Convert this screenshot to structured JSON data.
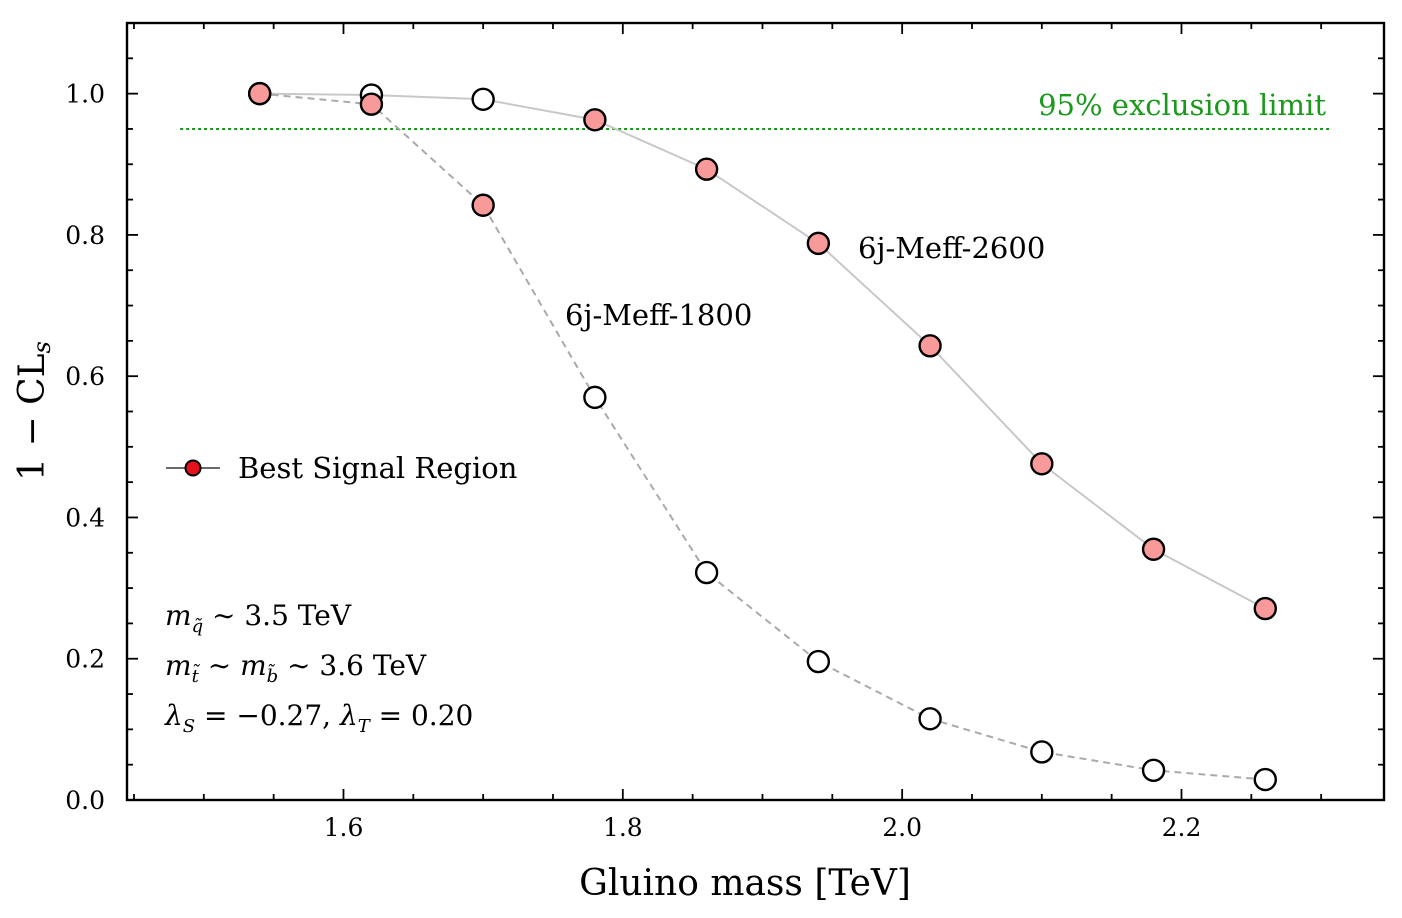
{
  "chart_data": {
    "type": "line",
    "xlabel": "Gluino mass [TeV]",
    "ylabel_main": "1 − CL",
    "ylabel_sub": "s",
    "xlim": [
      1.445,
      2.345
    ],
    "ylim": [
      0.0,
      1.1
    ],
    "x_ticks": [
      1.6,
      1.8,
      2.0,
      2.2
    ],
    "x_tick_labels": [
      "1.6",
      "1.8",
      "2.0",
      "2.2"
    ],
    "x_minor_step": 0.05,
    "y_ticks": [
      0.0,
      0.2,
      0.4,
      0.6,
      0.8,
      1.0
    ],
    "y_tick_labels": [
      "0.0",
      "0.2",
      "0.4",
      "0.6",
      "0.8",
      "1.0"
    ],
    "y_minor_step": 0.05,
    "exclusion_limit": {
      "value": 0.95,
      "x_range": [
        1.483,
        2.307
      ],
      "label": "95% exclusion limit",
      "color": "#1a9a1a"
    },
    "series": [
      {
        "name": "6j-Meff-2600",
        "label": "6j-Meff-2600",
        "line_style": "solid",
        "line_color": "#c8c8c8",
        "x": [
          1.54,
          1.62,
          1.7,
          1.78,
          1.86,
          1.94,
          2.02,
          2.1,
          2.18,
          2.26
        ],
        "y": [
          1.0,
          0.998,
          0.992,
          0.963,
          0.893,
          0.788,
          0.643,
          0.476,
          0.355,
          0.271
        ],
        "best": [
          true,
          false,
          false,
          true,
          true,
          true,
          true,
          true,
          true,
          true
        ]
      },
      {
        "name": "6j-Meff-1800",
        "label": "6j-Meff-1800",
        "line_style": "dashed",
        "line_color": "#aaaaaa",
        "x": [
          1.54,
          1.62,
          1.7,
          1.78,
          1.86,
          1.94,
          2.02,
          2.1,
          2.18,
          2.26
        ],
        "y": [
          1.0,
          0.985,
          0.842,
          0.57,
          0.322,
          0.196,
          0.115,
          0.068,
          0.042,
          0.029
        ],
        "best": [
          true,
          true,
          true,
          false,
          false,
          false,
          false,
          false,
          false,
          false
        ]
      }
    ],
    "legend": {
      "entries": [
        "Best Signal Region"
      ],
      "placement": "center-left"
    },
    "colors": {
      "best_fill": "#f99a9a",
      "legend_marker": "#e8101c",
      "open_fill": "#ffffff",
      "marker_edge": "#000000"
    },
    "annotations": {
      "label_2600": "6j-Meff-2600",
      "label_1800": "6j-Meff-1800",
      "params": [
        {
          "symbol": "m",
          "sub": "q̃",
          "rest": " ∼ 3.5 TeV"
        },
        {
          "symbol": "m",
          "sub": "t̃",
          "mid": " ∼ ",
          "symbol2": "m",
          "sub2": "b̃",
          "rest": " ∼ 3.6 TeV"
        },
        {
          "text_1": "λ",
          "sub_1": "S",
          "text_2": " = −0.27, ",
          "text_3": "λ",
          "sub_3": "T",
          "text_4": " = 0.20"
        }
      ]
    }
  }
}
